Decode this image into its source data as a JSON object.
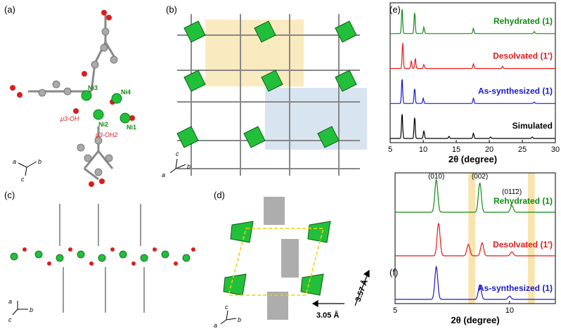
{
  "panels": {
    "a": {
      "label": "(a)",
      "atom_labels": [
        "Ni3",
        "Ni4",
        "Ni2",
        "Ni1"
      ],
      "mu3_oh": "μ3-OH",
      "mu3_oh2": "μ3-OH2",
      "axes": [
        "a",
        "b",
        "c"
      ]
    },
    "b": {
      "label": "(b)",
      "axes": [
        "c",
        "a",
        "b"
      ]
    },
    "c": {
      "label": "(c)",
      "axes": [
        "a",
        "c",
        "b"
      ]
    },
    "d": {
      "label": "(d)",
      "dim_x": "3.05 Å",
      "dim_y": "3.57 Å",
      "axes": [
        "c",
        "a",
        "b"
      ]
    },
    "e": {
      "label": "(e)"
    },
    "f": {
      "label": "(f)"
    }
  },
  "colors": {
    "rehydrated": "#138a13",
    "desolvated": "#e41a1a",
    "as_synthesized": "#1a1ac8",
    "simulated": "#000000",
    "highlight": "#f5d98a",
    "nickel": "#22c03a",
    "oxygen": "#d91e1e",
    "carbon": "#9a9a9a"
  },
  "chart_data": [
    {
      "type": "line",
      "panel": "e",
      "xlabel": "2θ (degree)",
      "xlim": [
        5,
        30
      ],
      "xticks": [
        5,
        10,
        15,
        20,
        25,
        30
      ],
      "series": [
        {
          "name": "Rehydrated (1)",
          "peaks": [
            [
              6.8,
              1.0
            ],
            [
              8.7,
              0.85
            ],
            [
              10.1,
              0.25
            ],
            [
              17.6,
              0.2
            ],
            [
              26.8,
              0.08
            ]
          ]
        },
        {
          "name": "Desolvated (1′)",
          "peaks": [
            [
              6.9,
              1.0
            ],
            [
              8.2,
              0.3
            ],
            [
              8.8,
              0.4
            ],
            [
              10.1,
              0.15
            ],
            [
              17.6,
              0.18
            ],
            [
              22.0,
              0.08
            ]
          ]
        },
        {
          "name": "As-synthesized (1)",
          "peaks": [
            [
              6.8,
              1.0
            ],
            [
              8.7,
              0.6
            ],
            [
              10.0,
              0.2
            ],
            [
              17.6,
              0.2
            ],
            [
              26.8,
              0.06
            ]
          ]
        },
        {
          "name": "Simulated",
          "peaks": [
            [
              6.8,
              1.0
            ],
            [
              8.7,
              0.85
            ],
            [
              10.1,
              0.3
            ],
            [
              13.9,
              0.08
            ],
            [
              17.6,
              0.2
            ],
            [
              20.2,
              0.06
            ],
            [
              26.5,
              0.06
            ]
          ]
        }
      ]
    },
    {
      "type": "line",
      "panel": "f",
      "xlabel": "2θ (degree)",
      "xlim": [
        5,
        12
      ],
      "xticks": [
        5,
        10
      ],
      "peak_labels": [
        "(010)",
        "(002)",
        "(011̄2)"
      ],
      "highlight_ranges": [
        [
          8.2,
          8.5
        ],
        [
          10.8,
          11.1
        ]
      ],
      "series": [
        {
          "name": "Rehydrated (1)",
          "peaks": [
            [
              6.8,
              1.0
            ],
            [
              8.7,
              0.9
            ],
            [
              10.1,
              0.2
            ]
          ]
        },
        {
          "name": "Desolvated (1′)",
          "peaks": [
            [
              6.9,
              1.0
            ],
            [
              8.2,
              0.35
            ],
            [
              8.8,
              0.4
            ],
            [
              10.1,
              0.12
            ]
          ]
        },
        {
          "name": "As-synthesized (1)",
          "peaks": [
            [
              6.8,
              1.0
            ],
            [
              8.7,
              0.45
            ],
            [
              10.0,
              0.1
            ]
          ]
        }
      ]
    }
  ]
}
